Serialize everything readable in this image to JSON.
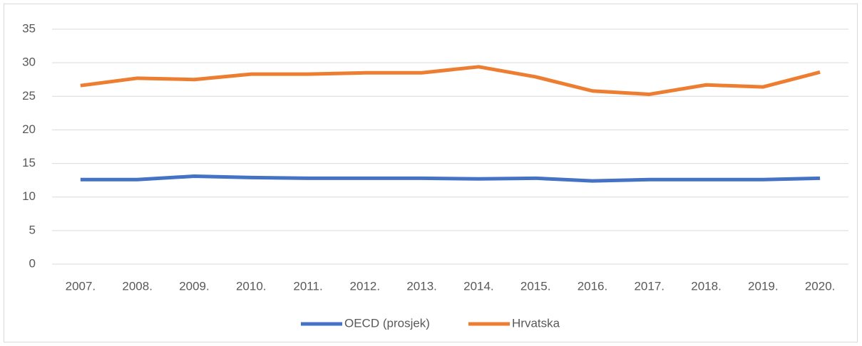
{
  "chart_data": {
    "type": "line",
    "categories": [
      "2007.",
      "2008.",
      "2009.",
      "2010.",
      "2011.",
      "2012.",
      "2013.",
      "2014.",
      "2015.",
      "2016.",
      "2017.",
      "2018.",
      "2019.",
      "2020."
    ],
    "series": [
      {
        "name": "OECD (prosjek)",
        "color": "#4472c4",
        "values": [
          12.6,
          12.6,
          13.1,
          12.9,
          12.8,
          12.8,
          12.8,
          12.7,
          12.8,
          12.4,
          12.6,
          12.6,
          12.6,
          12.8
        ]
      },
      {
        "name": "Hrvatska",
        "color": "#ed7d31",
        "values": [
          26.6,
          27.7,
          27.5,
          28.3,
          28.3,
          28.5,
          28.5,
          29.4,
          27.9,
          25.8,
          25.3,
          26.7,
          26.4,
          28.6
        ]
      }
    ],
    "ylim": [
      0,
      35
    ],
    "yticks": [
      0,
      5,
      10,
      15,
      20,
      25,
      30,
      35
    ],
    "grid": true,
    "legend": "bottom"
  }
}
